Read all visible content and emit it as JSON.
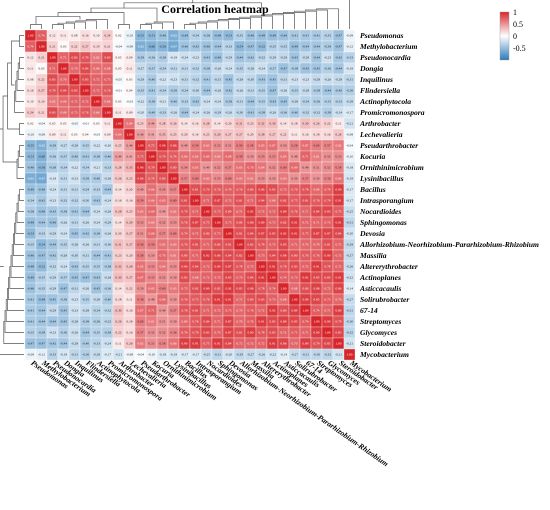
{
  "chart_data": {
    "type": "heatmap",
    "title": "Correlation heatmap",
    "labels": [
      "Pseudomonas",
      "Methylobacterium",
      "Pseudonocardia",
      "Dongia",
      "Inquilinus",
      "Flindersiella",
      "Actinophytocola",
      "Promicromonospora",
      "Arthrobacter",
      "Lechevalieria",
      "Pseudarthrobacter",
      "Kocuria",
      "Ornithinimicrobium",
      "Lysinibacillus",
      "Bacillus",
      "Intrasporangium",
      "Nocardioides",
      "Sphingomonas",
      "Devosia",
      "Allorhizobium-Neorhizobium-Pararhizobium-Rhizobium",
      "Massilia",
      "Altererythrobacter",
      "Actinoplanes",
      "Asticcacaulis",
      "Solirubrobacter",
      "67-14",
      "Streptomyces",
      "Glycomyces",
      "Steroidobacter",
      "Mycobacterium"
    ],
    "blocks": [
      {
        "members": [
          0,
          1
        ],
        "r": 0.75
      },
      {
        "members": [
          2,
          3,
          4,
          5,
          6,
          7
        ],
        "r": 0.72
      },
      {
        "members": [
          8,
          9
        ],
        "r": 0.6
      },
      {
        "members": [
          10,
          11,
          12,
          13
        ],
        "r": 0.85
      },
      {
        "members": [
          14,
          15,
          16,
          17,
          18,
          19,
          20,
          21,
          22,
          23,
          24,
          25,
          26,
          27,
          28
        ],
        "r": 0.8
      },
      {
        "members": [
          29
        ],
        "r": 1
      }
    ],
    "block_relations": [
      [
        1,
        0.15,
        -0.05,
        -0.55,
        -0.45,
        -0.2
      ],
      [
        0.15,
        1,
        0.05,
        -0.3,
        -0.35,
        -0.25
      ],
      [
        -0.05,
        0.05,
        1,
        0.35,
        0.2,
        -0.1
      ],
      [
        -0.55,
        -0.3,
        0.35,
        1,
        0.6,
        -0.15
      ],
      [
        -0.45,
        -0.35,
        0.2,
        0.6,
        1,
        -0.2
      ],
      [
        -0.2,
        -0.25,
        -0.1,
        -0.15,
        -0.2,
        1
      ]
    ],
    "color_scale": {
      "min": -1,
      "max": 1,
      "low": "#2b7bba",
      "mid": "#ffffff",
      "high": "#d7262b"
    },
    "legend": {
      "position": "top-right",
      "ticks": [
        "1",
        "0.5",
        "0",
        "-0.5"
      ]
    }
  }
}
